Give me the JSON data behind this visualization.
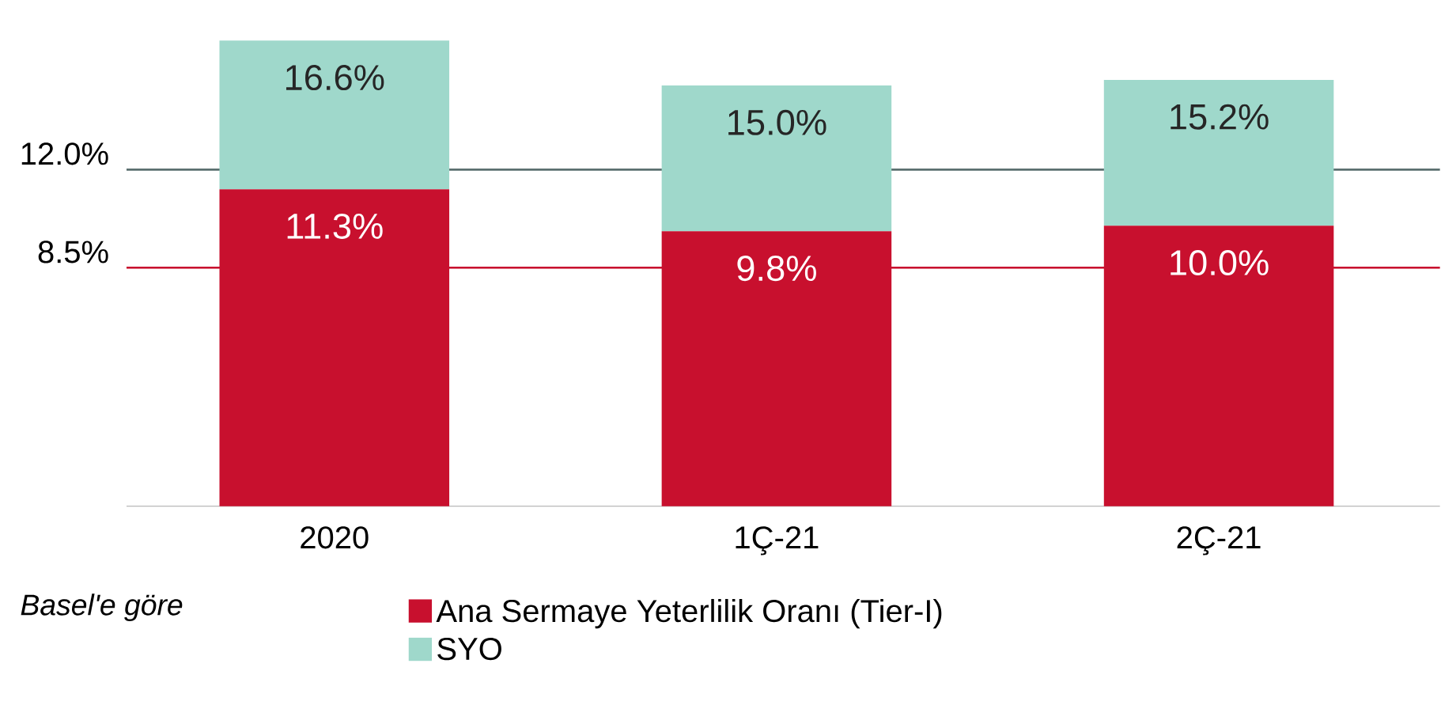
{
  "chart_data": {
    "type": "bar",
    "stacked": true,
    "categories": [
      "2020",
      "1Ç-21",
      "2Ç-21"
    ],
    "series": [
      {
        "name": "Ana Sermaye Yeterlilik Oranı (Tier-I)",
        "color": "#c8102e",
        "values": [
          11.3,
          9.8,
          10.0
        ],
        "value_labels": [
          "11.3%",
          "9.8%",
          "10.0%"
        ]
      },
      {
        "name": "SYO",
        "color": "#9fd8cb",
        "values": [
          5.3,
          5.2,
          5.2
        ]
      }
    ],
    "totals": [
      "16.6%",
      "15.0%",
      "15.2%"
    ],
    "tick_labels": "x",
    "ref_lines": [
      {
        "axis": "y",
        "value": 12.0,
        "label": "12.0%",
        "color": "#5b6f6f"
      },
      {
        "axis": "y",
        "value": 8.5,
        "label": "8.5%",
        "color": "#c8102e"
      }
    ],
    "annotations": [
      "Basel'e göre"
    ],
    "legend": "bottom"
  }
}
